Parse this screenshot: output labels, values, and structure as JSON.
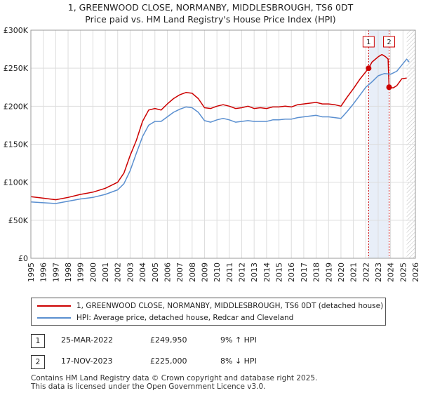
{
  "titles": {
    "line1": "1, GREENWOOD CLOSE, NORMANBY, MIDDLESBROUGH, TS6 0DT",
    "line2": "Price paid vs. HM Land Registry's House Price Index (HPI)"
  },
  "chart_data": {
    "type": "line",
    "title": "Price paid vs. HM Land Registry's House Price Index (HPI)",
    "xlim": [
      1995,
      2026
    ],
    "ylim": [
      0,
      300000
    ],
    "y_ticks": [
      {
        "value": 0,
        "label": "£0"
      },
      {
        "value": 50000,
        "label": "£50K"
      },
      {
        "value": 100000,
        "label": "£100K"
      },
      {
        "value": 150000,
        "label": "£150K"
      },
      {
        "value": 200000,
        "label": "£200K"
      },
      {
        "value": 250000,
        "label": "£250K"
      },
      {
        "value": 300000,
        "label": "£300K"
      }
    ],
    "x_ticks": [
      "1995",
      "1996",
      "1997",
      "1998",
      "1999",
      "2000",
      "2001",
      "2002",
      "2003",
      "2004",
      "2005",
      "2006",
      "2007",
      "2008",
      "2009",
      "2010",
      "2011",
      "2012",
      "2013",
      "2014",
      "2015",
      "2016",
      "2017",
      "2018",
      "2019",
      "2020",
      "2021",
      "2022",
      "2023",
      "2024",
      "2025",
      "2026"
    ],
    "grid": true,
    "series": [
      {
        "name": "1, GREENWOOD CLOSE, NORMANBY, MIDDLESBROUGH, TS6 0DT (detached house)",
        "color": "#cc0000",
        "points": [
          [
            1995.0,
            81000
          ],
          [
            1996.0,
            79000
          ],
          [
            1997.0,
            77000
          ],
          [
            1998.0,
            80000
          ],
          [
            1999.0,
            84000
          ],
          [
            2000.0,
            87000
          ],
          [
            2001.0,
            92000
          ],
          [
            2002.0,
            100000
          ],
          [
            2002.5,
            112000
          ],
          [
            2003.0,
            135000
          ],
          [
            2003.5,
            155000
          ],
          [
            2004.0,
            180000
          ],
          [
            2004.5,
            195000
          ],
          [
            2005.0,
            197000
          ],
          [
            2005.5,
            195000
          ],
          [
            2006.0,
            203000
          ],
          [
            2006.5,
            210000
          ],
          [
            2007.0,
            215000
          ],
          [
            2007.5,
            218000
          ],
          [
            2008.0,
            217000
          ],
          [
            2008.5,
            210000
          ],
          [
            2009.0,
            198000
          ],
          [
            2009.5,
            197000
          ],
          [
            2010.0,
            200000
          ],
          [
            2010.5,
            202000
          ],
          [
            2011.0,
            200000
          ],
          [
            2011.5,
            197000
          ],
          [
            2012.0,
            198000
          ],
          [
            2012.5,
            200000
          ],
          [
            2013.0,
            197000
          ],
          [
            2013.5,
            198000
          ],
          [
            2014.0,
            197000
          ],
          [
            2014.5,
            199000
          ],
          [
            2015.0,
            199000
          ],
          [
            2015.5,
            200000
          ],
          [
            2016.0,
            199000
          ],
          [
            2016.5,
            202000
          ],
          [
            2017.0,
            203000
          ],
          [
            2017.5,
            204000
          ],
          [
            2018.0,
            205000
          ],
          [
            2018.5,
            203000
          ],
          [
            2019.0,
            203000
          ],
          [
            2019.5,
            202000
          ],
          [
            2020.0,
            200000
          ],
          [
            2020.5,
            212000
          ],
          [
            2021.0,
            223000
          ],
          [
            2021.5,
            235000
          ],
          [
            2022.23,
            249950
          ],
          [
            2022.5,
            258000
          ],
          [
            2023.0,
            265000
          ],
          [
            2023.3,
            268000
          ],
          [
            2023.6,
            265000
          ],
          [
            2023.8,
            262000
          ],
          [
            2023.88,
            225000
          ],
          [
            2024.2,
            224000
          ],
          [
            2024.5,
            227000
          ],
          [
            2024.9,
            236000
          ],
          [
            2025.3,
            237000
          ]
        ]
      },
      {
        "name": "HPI: Average price, detached house, Redcar and Cleveland",
        "color": "#5a8fd0",
        "points": [
          [
            1995.0,
            74000
          ],
          [
            1996.0,
            73000
          ],
          [
            1997.0,
            72000
          ],
          [
            1998.0,
            75000
          ],
          [
            1999.0,
            78000
          ],
          [
            2000.0,
            80000
          ],
          [
            2001.0,
            84000
          ],
          [
            2002.0,
            90000
          ],
          [
            2002.5,
            98000
          ],
          [
            2003.0,
            115000
          ],
          [
            2003.5,
            138000
          ],
          [
            2004.0,
            160000
          ],
          [
            2004.5,
            175000
          ],
          [
            2005.0,
            180000
          ],
          [
            2005.5,
            180000
          ],
          [
            2006.0,
            186000
          ],
          [
            2006.5,
            192000
          ],
          [
            2007.0,
            196000
          ],
          [
            2007.5,
            199000
          ],
          [
            2008.0,
            198000
          ],
          [
            2008.5,
            192000
          ],
          [
            2009.0,
            181000
          ],
          [
            2009.5,
            179000
          ],
          [
            2010.0,
            182000
          ],
          [
            2010.5,
            184000
          ],
          [
            2011.0,
            182000
          ],
          [
            2011.5,
            179000
          ],
          [
            2012.0,
            180000
          ],
          [
            2012.5,
            181000
          ],
          [
            2013.0,
            180000
          ],
          [
            2013.5,
            180000
          ],
          [
            2014.0,
            180000
          ],
          [
            2014.5,
            182000
          ],
          [
            2015.0,
            182000
          ],
          [
            2015.5,
            183000
          ],
          [
            2016.0,
            183000
          ],
          [
            2016.5,
            185000
          ],
          [
            2017.0,
            186000
          ],
          [
            2017.5,
            187000
          ],
          [
            2018.0,
            188000
          ],
          [
            2018.5,
            186000
          ],
          [
            2019.0,
            186000
          ],
          [
            2019.5,
            185000
          ],
          [
            2020.0,
            184000
          ],
          [
            2020.5,
            193000
          ],
          [
            2021.0,
            203000
          ],
          [
            2021.5,
            214000
          ],
          [
            2022.0,
            225000
          ],
          [
            2022.5,
            232000
          ],
          [
            2023.0,
            240000
          ],
          [
            2023.5,
            243000
          ],
          [
            2024.0,
            242000
          ],
          [
            2024.5,
            246000
          ],
          [
            2025.0,
            256000
          ],
          [
            2025.3,
            262000
          ],
          [
            2025.5,
            258000
          ]
        ]
      }
    ],
    "sales": [
      {
        "label": "1",
        "x": 2022.23,
        "y": 249950
      },
      {
        "label": "2",
        "x": 2023.88,
        "y": 225000
      }
    ],
    "shaded_band": [
      2022.23,
      2023.88
    ],
    "hatched_from": 2025.3
  },
  "legend": {
    "property": "1, GREENWOOD CLOSE, NORMANBY, MIDDLESBROUGH, TS6 0DT (detached house)",
    "hpi": "HPI: Average price, detached house, Redcar and Cleveland"
  },
  "sales_table": [
    {
      "num": "1",
      "date": "25-MAR-2022",
      "price": "£249,950",
      "hpi": "9% ↑ HPI"
    },
    {
      "num": "2",
      "date": "17-NOV-2023",
      "price": "£225,000",
      "hpi": "8% ↓ HPI"
    }
  ],
  "footer": {
    "line1": "Contains HM Land Registry data © Crown copyright and database right 2025.",
    "line2": "This data is licensed under the Open Government Licence v3.0."
  },
  "colors": {
    "property": "#cc0000",
    "hpi": "#5a8fd0",
    "band": "#e8eef8",
    "grid": "#dddddd"
  }
}
